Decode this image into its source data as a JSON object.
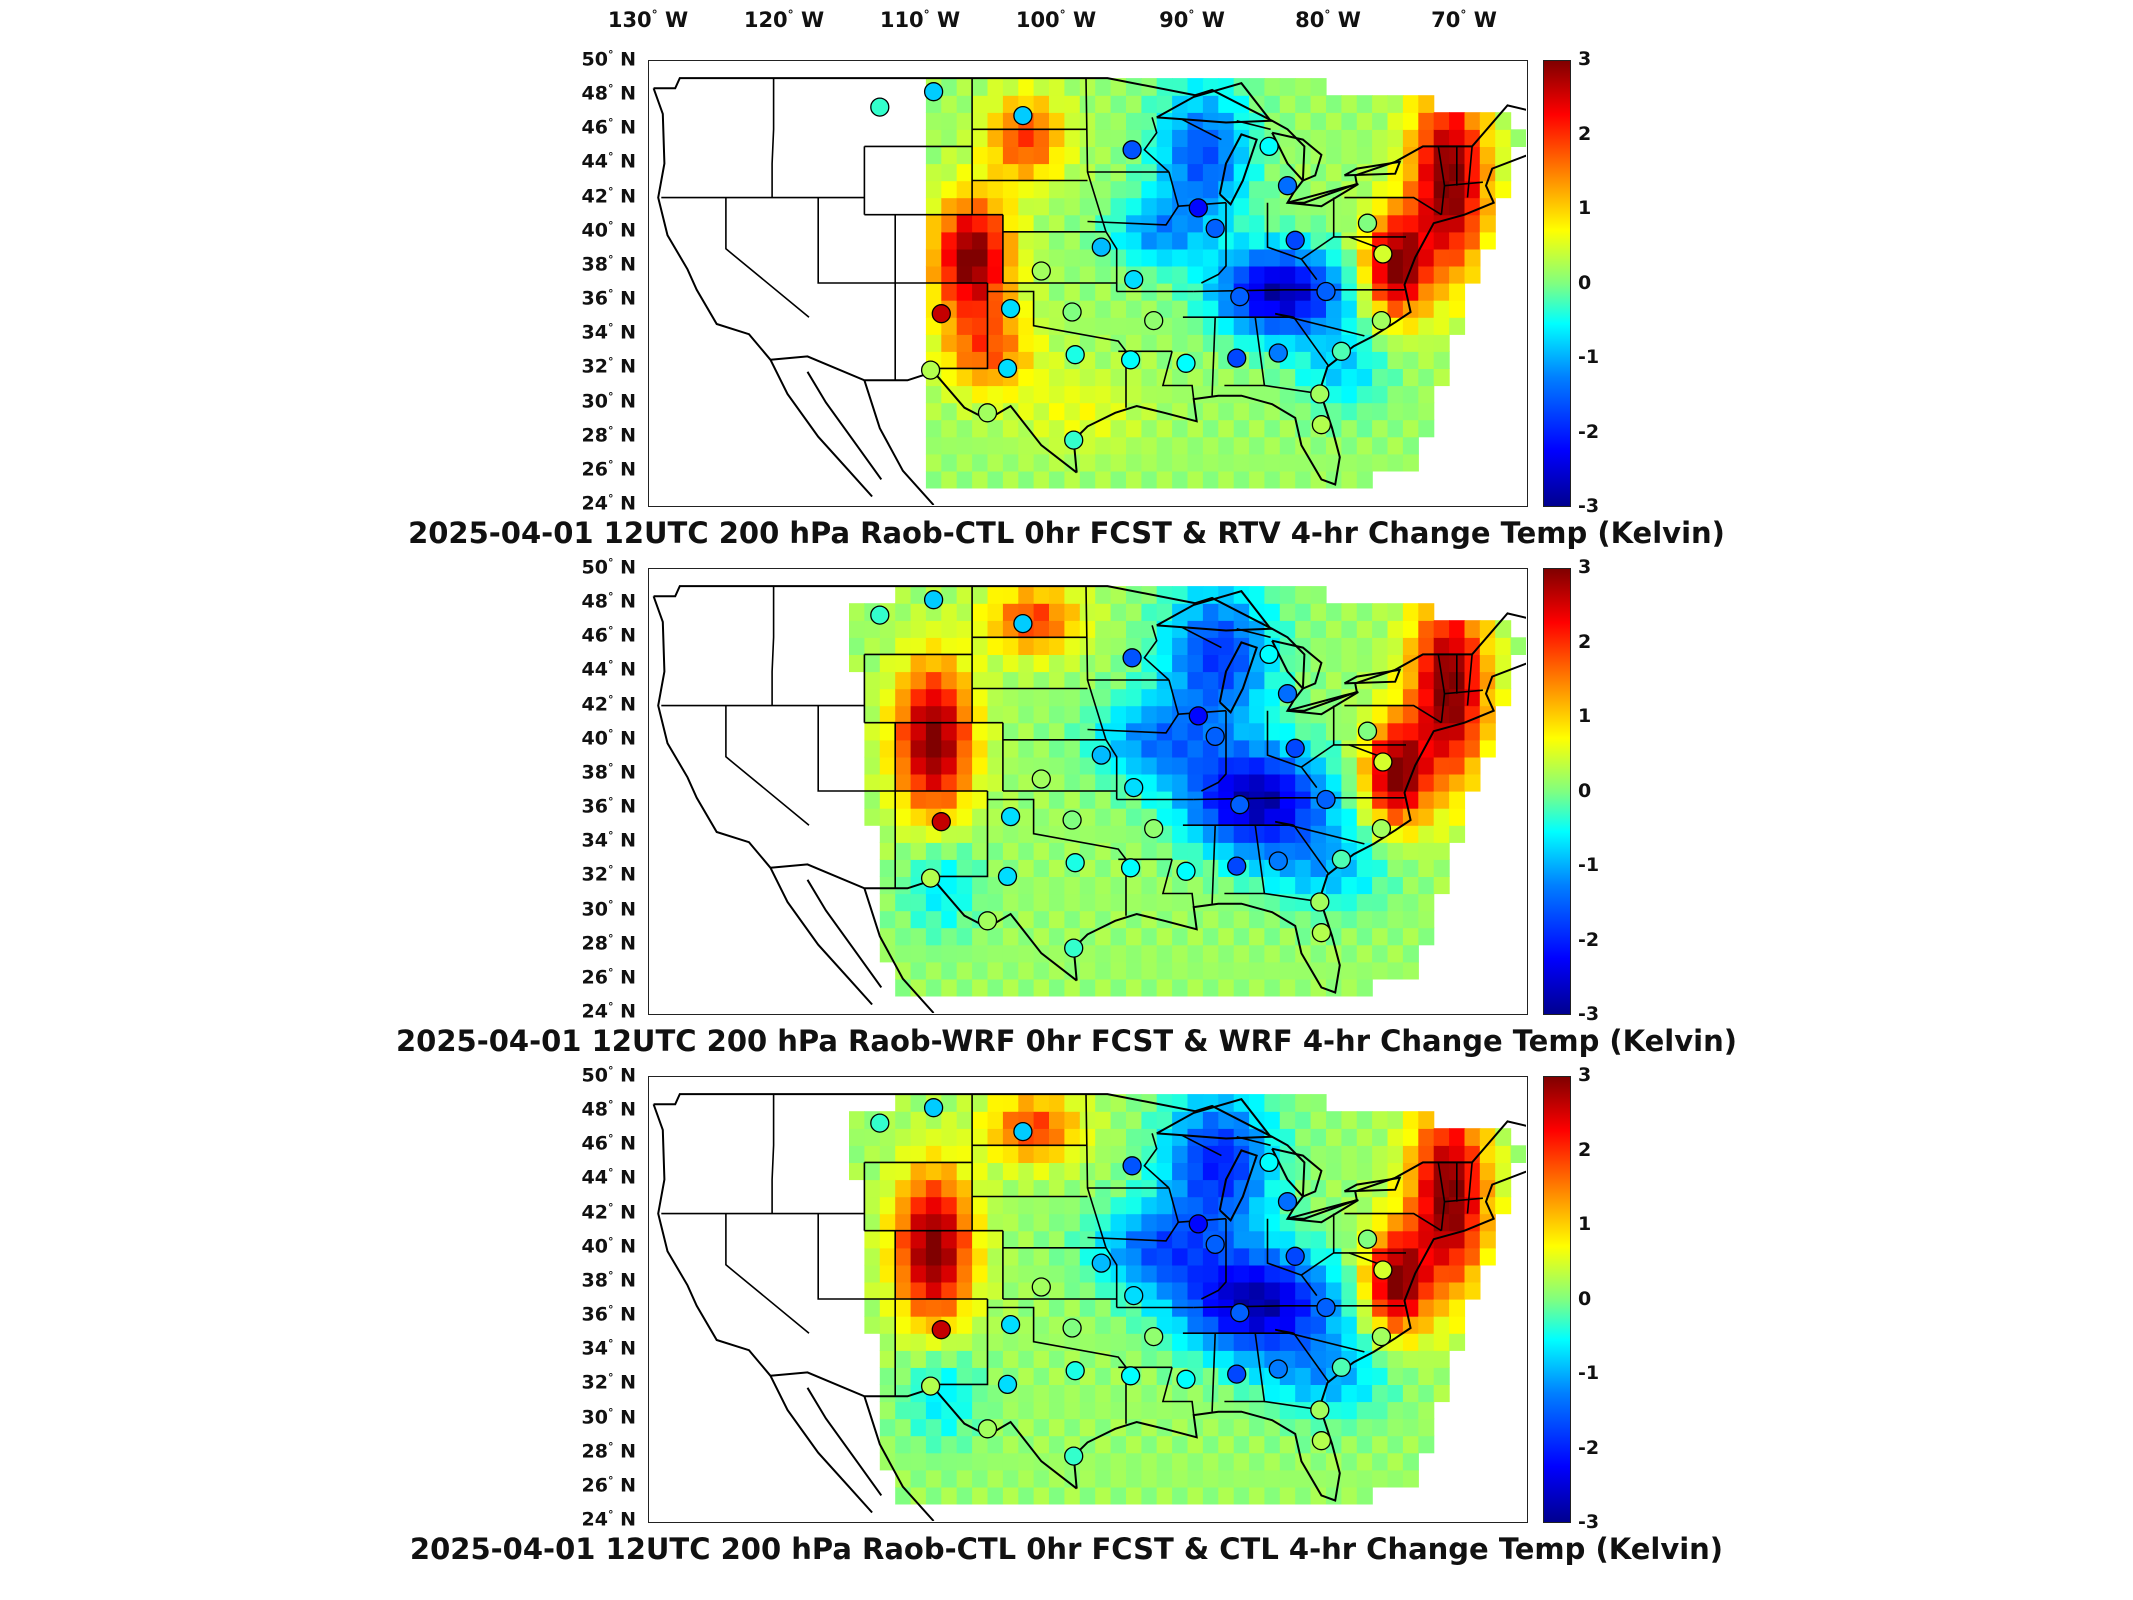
{
  "lon_labels": [
    "130",
    "120",
    "110",
    "100",
    "90",
    "80",
    "70"
  ],
  "lon_suffix": "W",
  "lat_labels": [
    "50",
    "48",
    "46",
    "44",
    "42",
    "40",
    "38",
    "36",
    "34",
    "32",
    "30",
    "28",
    "26",
    "24"
  ],
  "lat_suffix": "N",
  "colorbar": {
    "ticks": [
      "3",
      "2",
      "1",
      "0",
      "-1",
      "-2",
      "-3"
    ],
    "min": -3,
    "max": 3,
    "units": "Kelvin"
  },
  "panels": [
    {
      "title": "2025-04-01 12UTC 200 hPa Raob-CTL 0hr FCST & RTV 4-hr Change Temp (Kelvin)"
    },
    {
      "title": "2025-04-01 12UTC 200 hPa Raob-WRF 0hr FCST & WRF 4-hr Change Temp (Kelvin)"
    },
    {
      "title": "2025-04-01 12UTC 200 hPa Raob-CTL 0hr FCST & CTL 4-hr Change Temp (Kelvin)"
    }
  ],
  "stations": [
    {
      "lon": -110.0,
      "lat": 47.3,
      "v": -0.3
    },
    {
      "lon": -106.5,
      "lat": 48.2,
      "v": -0.8
    },
    {
      "lon": -100.7,
      "lat": 46.8,
      "v": -0.8
    },
    {
      "lon": -93.6,
      "lat": 44.8,
      "v": -1.6
    },
    {
      "lon": -84.7,
      "lat": 45.0,
      "v": -0.5
    },
    {
      "lon": -83.5,
      "lat": 42.7,
      "v": -1.4
    },
    {
      "lon": -89.3,
      "lat": 41.4,
      "v": -2.2
    },
    {
      "lon": -88.2,
      "lat": 40.2,
      "v": -1.5
    },
    {
      "lon": -95.6,
      "lat": 39.1,
      "v": -0.9
    },
    {
      "lon": -83.0,
      "lat": 39.5,
      "v": -1.7
    },
    {
      "lon": -78.3,
      "lat": 40.5,
      "v": 0.0
    },
    {
      "lon": -77.3,
      "lat": 38.7,
      "v": 0.5
    },
    {
      "lon": -106.0,
      "lat": 35.2,
      "v": 2.6
    },
    {
      "lon": -101.5,
      "lat": 35.5,
      "v": -0.7
    },
    {
      "lon": -99.5,
      "lat": 37.7,
      "v": 0.2
    },
    {
      "lon": -97.5,
      "lat": 35.3,
      "v": 0.0
    },
    {
      "lon": -93.5,
      "lat": 37.2,
      "v": -0.7
    },
    {
      "lon": -92.2,
      "lat": 34.8,
      "v": 0.1
    },
    {
      "lon": -86.6,
      "lat": 36.2,
      "v": -1.5
    },
    {
      "lon": -81.0,
      "lat": 36.5,
      "v": -1.5
    },
    {
      "lon": -77.4,
      "lat": 34.8,
      "v": 0.2
    },
    {
      "lon": -80.0,
      "lat": 33.0,
      "v": -0.2
    },
    {
      "lon": -84.1,
      "lat": 32.9,
      "v": -1.3
    },
    {
      "lon": -86.8,
      "lat": 32.6,
      "v": -1.7
    },
    {
      "lon": -90.1,
      "lat": 32.3,
      "v": -0.5
    },
    {
      "lon": -93.7,
      "lat": 32.5,
      "v": -0.5
    },
    {
      "lon": -97.3,
      "lat": 32.8,
      "v": -0.4
    },
    {
      "lon": -101.7,
      "lat": 32.0,
      "v": -0.7
    },
    {
      "lon": -106.7,
      "lat": 31.9,
      "v": 0.3
    },
    {
      "lon": -103.0,
      "lat": 29.4,
      "v": 0.2
    },
    {
      "lon": -97.4,
      "lat": 27.8,
      "v": -0.3
    },
    {
      "lon": -81.3,
      "lat": 28.7,
      "v": 0.3
    },
    {
      "lon": -81.4,
      "lat": 30.5,
      "v": 0.2
    }
  ]
}
